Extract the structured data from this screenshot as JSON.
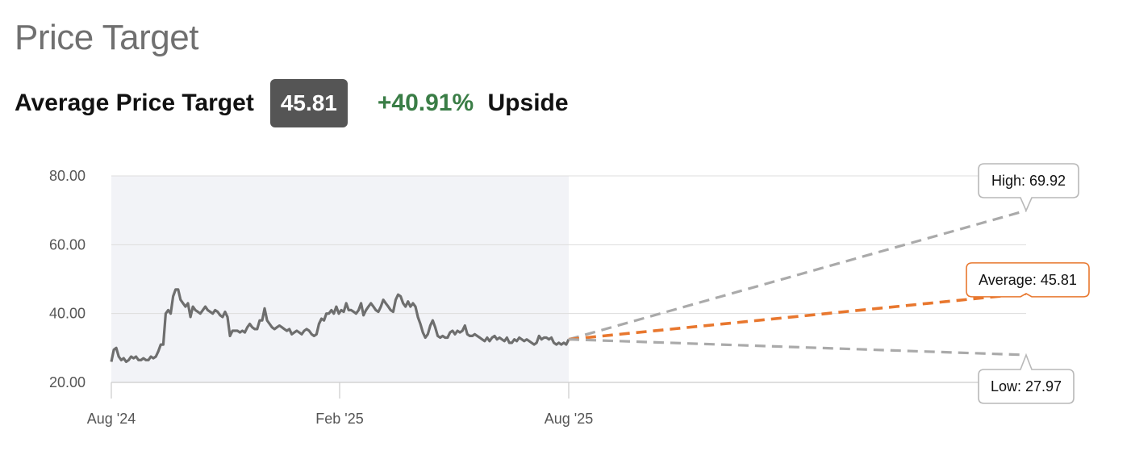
{
  "header": {
    "title": "Price Target",
    "avg_label": "Average Price Target",
    "avg_value": "45.81",
    "upside_pct": "+40.91%",
    "upside_word": "Upside"
  },
  "colors": {
    "history_line": "#6e6e6e",
    "history_band": "#f2f3f7",
    "average": "#e8772e",
    "high_low": "#aaaaaa",
    "upside": "#3a7d46",
    "grid": "#dddddd"
  },
  "chart_data": {
    "type": "line",
    "ylim": [
      20,
      80
    ],
    "yticks": [
      "20.00",
      "40.00",
      "60.00",
      "80.00"
    ],
    "ytick_values": [
      20,
      40,
      60,
      80
    ],
    "xticks": [
      "Aug '24",
      "Feb '25",
      "Aug '25"
    ],
    "forecast_horizon": "Aug '26",
    "series": [
      {
        "kind": "history",
        "values": [
          26,
          29.5,
          30,
          27.5,
          26.5,
          27,
          26,
          26.5,
          27.5,
          27,
          27.5,
          26.5,
          26.5,
          27,
          26.5,
          26.5,
          27.5,
          27,
          27.5,
          29,
          31,
          31,
          40,
          41,
          40,
          45,
          47,
          47,
          44,
          43,
          42,
          43,
          39,
          42,
          41,
          40.5,
          40,
          41,
          42,
          41,
          40.5,
          40,
          41,
          40.5,
          39.5,
          39,
          40.5,
          39,
          33.5,
          35,
          35,
          35,
          34.5,
          35,
          34.5,
          36,
          37,
          36,
          35.5,
          35.5,
          38,
          38,
          41.5,
          38,
          37,
          36,
          35.5,
          36,
          36.5,
          36,
          35.5,
          35,
          35.5,
          34,
          34.5,
          35,
          34.5,
          34,
          35,
          35.5,
          35,
          34,
          33.5,
          34,
          37,
          38.5,
          38,
          40,
          40,
          41,
          40,
          42,
          40,
          41,
          40.5,
          43,
          41,
          41,
          40.5,
          40,
          41,
          43,
          39.5,
          41,
          42,
          43,
          42,
          41,
          40.5,
          42,
          44,
          43,
          42,
          41,
          40.5,
          44,
          45.5,
          45,
          43,
          42,
          43.5,
          42,
          43,
          42,
          39,
          37,
          34.5,
          33,
          34,
          36.5,
          38,
          36,
          33.5,
          33,
          33.5,
          33,
          33,
          34.5,
          35,
          34,
          35,
          34.5,
          35,
          36.5,
          34,
          33.5,
          33.5,
          34,
          33.5,
          33,
          32.5,
          32,
          33,
          32,
          33,
          33.5,
          32.5,
          33,
          32.5,
          32,
          33,
          31.5,
          31.5,
          32.5,
          32,
          33,
          32.5,
          32,
          32.5,
          32,
          31.5,
          31,
          31.5,
          33.5,
          32.5,
          33,
          33,
          32.5,
          33,
          31.5,
          31,
          31.5,
          31,
          31.5,
          31,
          32.5
        ]
      },
      {
        "kind": "target",
        "name": "High",
        "from": 32.5,
        "to": 69.92
      },
      {
        "kind": "target",
        "name": "Average",
        "from": 32.5,
        "to": 45.81
      },
      {
        "kind": "target",
        "name": "Low",
        "from": 32.5,
        "to": 27.97
      }
    ],
    "tooltips": [
      {
        "label": "High: 69.92",
        "value": 69.92
      },
      {
        "label": "Average: 45.81",
        "value": 45.81
      },
      {
        "label": "Low: 27.97",
        "value": 27.97
      }
    ]
  }
}
